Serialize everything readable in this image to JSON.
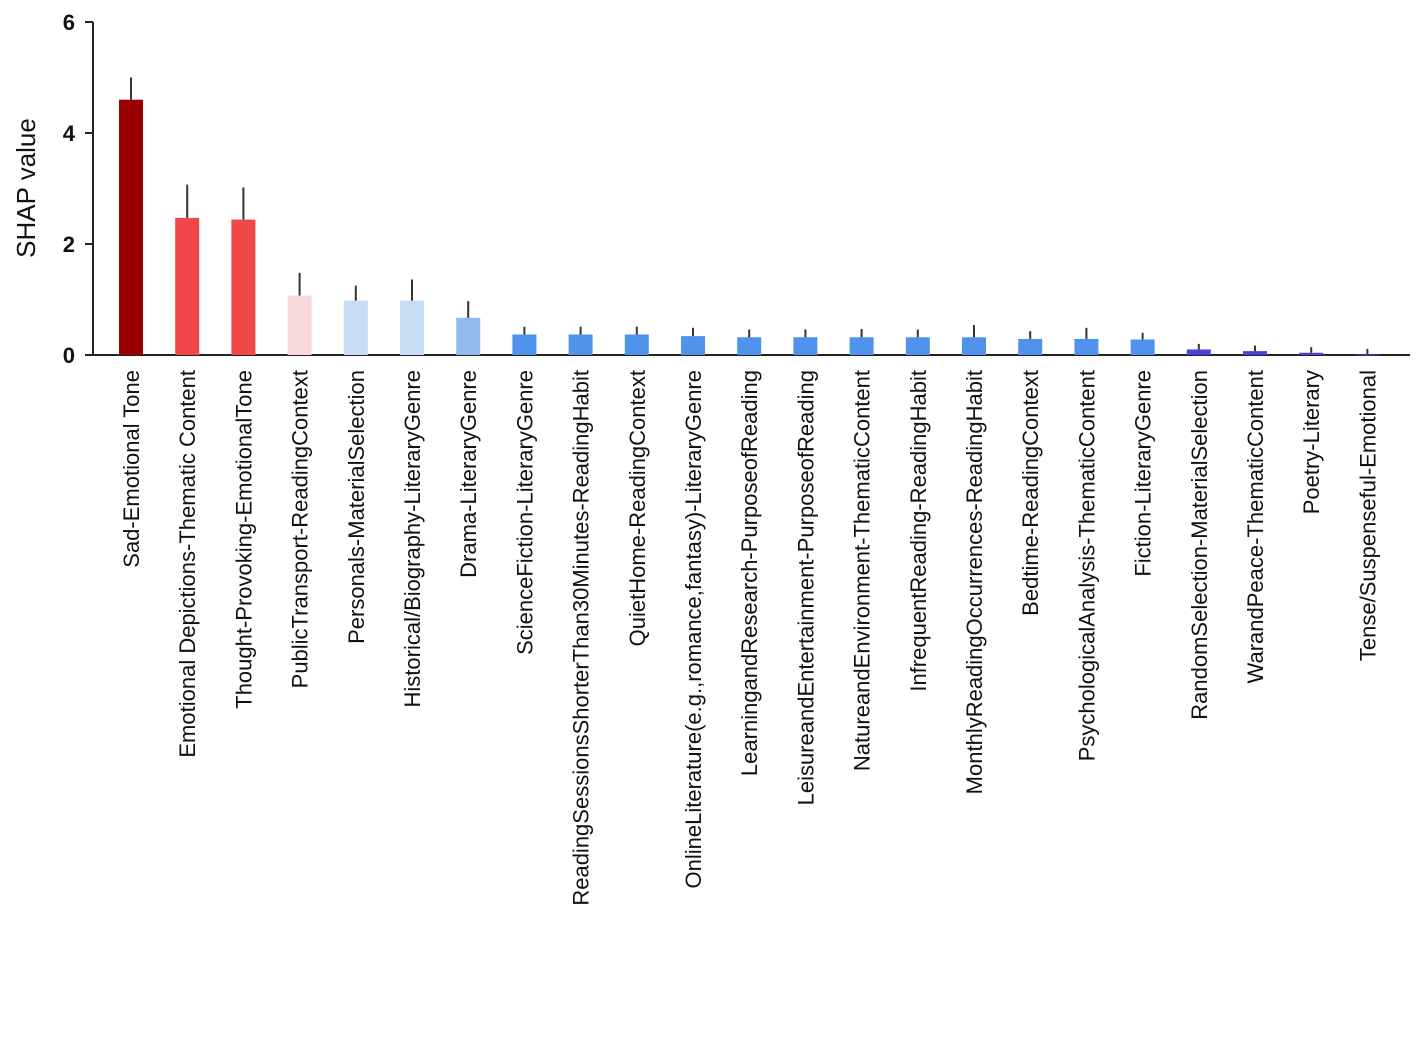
{
  "chart_data": {
    "type": "bar",
    "ylabel": "SHAP value",
    "xlabel": "",
    "title": "",
    "ylim": [
      0,
      6
    ],
    "yticks": [
      0,
      2,
      4,
      6
    ],
    "grid": false,
    "categories": [
      "Sad-Emotional Tone",
      "Emotional Depictions-Thematic Content",
      "Thought-Provoking-EmotionalTone",
      "PublicTransport-ReadingContext",
      "Personals-MaterialSelection",
      "Historical/Biography-LiteraryGenre",
      "Drama-LiteraryGenre",
      "ScienceFiction-LiteraryGenre",
      "ReadingSessionsShorterThan30Minutes-ReadingHabit",
      "QuietHome-ReadingContext",
      "OnlineLiterature(e.g.,romance,fantasy)-LiteraryGenre",
      "LearningandResearch-PurposeofReading",
      "LeisureandEntertainment-PurposeofReading",
      "NatureandEnvironment-ThematicContent",
      "InfrequentReading-ReadingHabit",
      "MonthlyReadingOccurrences-ReadingHabit",
      "Bedtime-ReadingContext",
      "PsychologicalAnalysis-ThematicContent",
      "Fiction-LiteraryGenre",
      "RandomSelection-MaterialSelection",
      "WarandPeace-ThematicContent",
      "Poetry-Literary",
      "Tense/Suspenseful-Emotional"
    ],
    "values": [
      4.6,
      2.47,
      2.44,
      1.07,
      0.98,
      0.98,
      0.67,
      0.37,
      0.37,
      0.37,
      0.34,
      0.32,
      0.32,
      0.32,
      0.32,
      0.32,
      0.29,
      0.29,
      0.28,
      0.1,
      0.07,
      0.04,
      0.01
    ],
    "errors": [
      0.4,
      0.6,
      0.58,
      0.41,
      0.27,
      0.38,
      0.3,
      0.14,
      0.14,
      0.14,
      0.15,
      0.14,
      0.14,
      0.15,
      0.14,
      0.22,
      0.14,
      0.2,
      0.12,
      0.1,
      0.1,
      0.1,
      0.1
    ],
    "colors": [
      "#9b0000",
      "#f04848",
      "#f04848",
      "#fad9dc",
      "#c7dcf5",
      "#c7dcf5",
      "#8fbbee",
      "#4f93ec",
      "#4f93ec",
      "#4f93ec",
      "#4f93ec",
      "#4f93ec",
      "#4f93ec",
      "#4f93ec",
      "#4f93ec",
      "#4f93ec",
      "#4f93ec",
      "#4f93ec",
      "#4f93ec",
      "#4a3fe0",
      "#4a3fe0",
      "#4a3fe0",
      "#4a3fe0"
    ]
  }
}
